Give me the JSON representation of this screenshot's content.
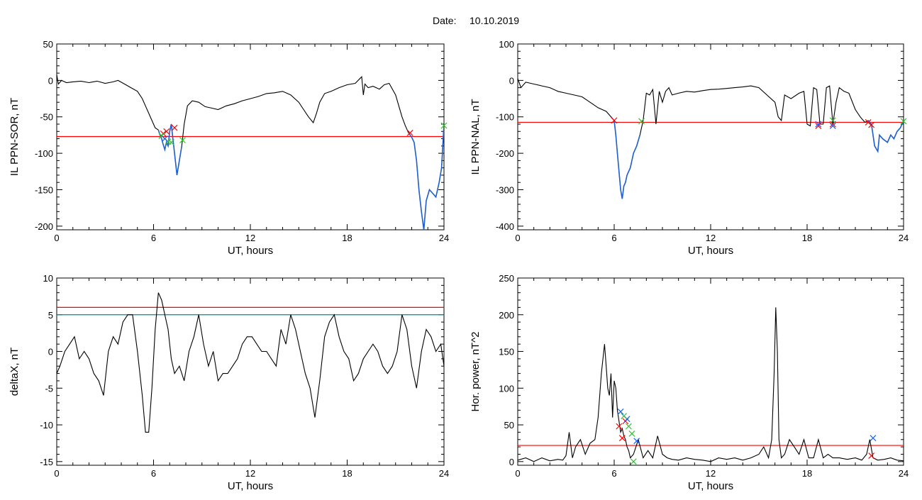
{
  "header": {
    "date_label": "Date:",
    "date_value": "10.10.2019"
  },
  "colors": {
    "background": "#ffffff",
    "axis": "#000000",
    "trace": "#000000",
    "highlight_trace": "#1f5fd0",
    "threshold_line": "#ff0000",
    "secondary_threshold_line": "#008b8b",
    "marker_red": "#ff0000",
    "marker_blue": "#1060ff",
    "marker_green": "#30c030"
  },
  "chart_data": [
    {
      "type": "line",
      "id": "il-sor",
      "title": "",
      "xlabel": "UT, hours",
      "ylabel": "IL PPN-SOR, nT",
      "xlim": [
        0,
        24
      ],
      "ylim": [
        -205,
        50
      ],
      "x_ticks": [
        "0",
        "6",
        "12",
        "18",
        "24"
      ],
      "y_ticks": [
        "50",
        "0",
        "-50",
        "-100",
        "-150",
        "-200"
      ],
      "grid": false,
      "series": [
        {
          "x": [
            0,
            0.1,
            0.3,
            0.6,
            1,
            1.5,
            2,
            2.5,
            3,
            3.5,
            3.8,
            4.2,
            4.6,
            5,
            5.3,
            5.5,
            5.7,
            5.9,
            6.1,
            6.3,
            6.4,
            6.5,
            6.6,
            6.7,
            6.8,
            6.9,
            7,
            7.1,
            7.2,
            7.3,
            7.45,
            7.6,
            7.75,
            7.9,
            8.1,
            8.4,
            8.8,
            9.2,
            9.6,
            10,
            10.5,
            11,
            11.5,
            12,
            12.5,
            13,
            13.5,
            14,
            14.5,
            15,
            15.3,
            15.6,
            15.9,
            16.1,
            16.3,
            16.6,
            17,
            17.5,
            18,
            18.5,
            18.9,
            19,
            19.1,
            19.3,
            19.6,
            20,
            20.3,
            20.6,
            21,
            21.2,
            21.4,
            21.6,
            21.8,
            22,
            22.15,
            22.3,
            22.45,
            22.6,
            22.75,
            22.9,
            23.1,
            23.3,
            23.5,
            23.7,
            23.85,
            24
          ],
          "y": [
            8,
            -5,
            0,
            -3,
            -2,
            -1,
            -3,
            -1,
            -4,
            -2,
            0,
            -5,
            -10,
            -15,
            -25,
            -35,
            -45,
            -55,
            -65,
            -68,
            -75,
            -80,
            -88,
            -95,
            -85,
            -90,
            -70,
            -60,
            -80,
            -100,
            -130,
            -110,
            -90,
            -60,
            -35,
            -28,
            -30,
            -36,
            -38,
            -40,
            -35,
            -32,
            -28,
            -25,
            -22,
            -18,
            -17,
            -15,
            -20,
            -30,
            -40,
            -50,
            -58,
            -45,
            -30,
            -18,
            -15,
            -10,
            -6,
            -4,
            5,
            -20,
            -5,
            -10,
            -8,
            -12,
            -6,
            -4,
            -20,
            -35,
            -50,
            -62,
            -72,
            -78,
            -85,
            -110,
            -150,
            -180,
            -205,
            -165,
            -150,
            -155,
            -160,
            -140,
            -120,
            -60
          ]
        }
      ],
      "highlight_segments": [
        [
          6.3,
          7.8
        ],
        [
          21.8,
          24
        ]
      ],
      "threshold_lines": [
        {
          "y": -77,
          "color": "#ff0000"
        }
      ],
      "markers": [
        {
          "x": 6.6,
          "y": -73,
          "color": "#ff0000"
        },
        {
          "x": 6.8,
          "y": -70,
          "color": "#ff0000"
        },
        {
          "x": 7.3,
          "y": -65,
          "color": "#ff0000"
        },
        {
          "x": 21.9,
          "y": -72,
          "color": "#ff0000"
        },
        {
          "x": 6.5,
          "y": -76,
          "color": "#30c030"
        },
        {
          "x": 6.9,
          "y": -84,
          "color": "#30c030"
        },
        {
          "x": 7.1,
          "y": -85,
          "color": "#30c030"
        },
        {
          "x": 7.8,
          "y": -82,
          "color": "#30c030"
        },
        {
          "x": 24,
          "y": -62,
          "color": "#30c030"
        },
        {
          "x": 6.7,
          "y": -80,
          "color": "#1060ff"
        }
      ]
    },
    {
      "type": "line",
      "id": "il-nal",
      "title": "",
      "xlabel": "UT, hours",
      "ylabel": "IL PPN-NAL, nT",
      "xlim": [
        0,
        24
      ],
      "ylim": [
        -410,
        100
      ],
      "x_ticks": [
        "0",
        "6",
        "12",
        "18",
        "24"
      ],
      "y_ticks": [
        "100",
        "0",
        "-100",
        "-200",
        "-300",
        "-400"
      ],
      "grid": false,
      "series": [
        {
          "x": [
            0,
            0.2,
            0.5,
            1,
            1.5,
            2,
            2.5,
            3,
            3.5,
            4,
            4.5,
            5,
            5.5,
            5.8,
            6,
            6.1,
            6.2,
            6.3,
            6.4,
            6.5,
            6.6,
            6.7,
            6.8,
            7,
            7.2,
            7.4,
            7.6,
            7.8,
            8,
            8.2,
            8.4,
            8.6,
            8.8,
            9,
            9.2,
            9.4,
            9.6,
            10,
            10.5,
            11,
            11.5,
            12,
            12.5,
            13,
            13.5,
            14,
            14.5,
            15,
            15.5,
            16,
            16.2,
            16.4,
            16.6,
            17,
            17.5,
            17.8,
            18,
            18.2,
            18.4,
            18.6,
            18.8,
            19,
            19.2,
            19.4,
            19.6,
            19.8,
            20,
            20.3,
            20.6,
            21,
            21.3,
            21.6,
            21.8,
            22,
            22.2,
            22.4,
            22.5,
            22.7,
            23,
            23.2,
            23.4,
            23.6,
            23.8,
            24
          ],
          "y": [
            5,
            -20,
            -5,
            -10,
            -15,
            -20,
            -30,
            -35,
            -40,
            -45,
            -60,
            -75,
            -85,
            -100,
            -110,
            -150,
            -200,
            -250,
            -300,
            -325,
            -290,
            -280,
            -260,
            -240,
            -200,
            -180,
            -150,
            -110,
            -35,
            -40,
            -25,
            -120,
            -30,
            -60,
            -30,
            -20,
            -40,
            -35,
            -30,
            -32,
            -28,
            -25,
            -24,
            -22,
            -20,
            -18,
            -15,
            -20,
            -40,
            -60,
            -100,
            -110,
            -40,
            -50,
            -35,
            -30,
            -120,
            -125,
            -20,
            -25,
            -120,
            -120,
            -20,
            -15,
            -120,
            -60,
            -20,
            -30,
            -35,
            -80,
            -100,
            -115,
            -110,
            -120,
            -180,
            -195,
            -150,
            -160,
            -170,
            -150,
            -160,
            -140,
            -130,
            -110
          ]
        }
      ],
      "highlight_segments": [
        [
          6.0,
          7.7
        ],
        [
          21.8,
          24
        ]
      ],
      "threshold_lines": [
        {
          "y": -115,
          "color": "#ff0000"
        }
      ],
      "markers": [
        {
          "x": 6.0,
          "y": -110,
          "color": "#ff0000"
        },
        {
          "x": 18.7,
          "y": -125,
          "color": "#ff0000"
        },
        {
          "x": 19.6,
          "y": -120,
          "color": "#ff0000"
        },
        {
          "x": 21.8,
          "y": -115,
          "color": "#ff0000"
        },
        {
          "x": 22.0,
          "y": -122,
          "color": "#ff0000"
        },
        {
          "x": 7.7,
          "y": -112,
          "color": "#30c030"
        },
        {
          "x": 19.6,
          "y": -110,
          "color": "#30c030"
        },
        {
          "x": 24,
          "y": -112,
          "color": "#30c030"
        },
        {
          "x": 18.7,
          "y": -120,
          "color": "#1060ff"
        },
        {
          "x": 19.6,
          "y": -125,
          "color": "#1060ff"
        }
      ]
    },
    {
      "type": "line",
      "id": "deltax",
      "title": "",
      "xlabel": "UT, hours",
      "ylabel": "deltaX, nT",
      "xlim": [
        0,
        24
      ],
      "ylim": [
        -15.5,
        10
      ],
      "x_ticks": [
        "0",
        "6",
        "12",
        "18",
        "24"
      ],
      "y_ticks": [
        "10",
        "5",
        "0",
        "-5",
        "-10",
        "-15"
      ],
      "grid": false,
      "series": [
        {
          "x": [
            0,
            0.2,
            0.5,
            0.8,
            1.1,
            1.4,
            1.7,
            2,
            2.3,
            2.6,
            2.9,
            3.2,
            3.5,
            3.8,
            4.1,
            4.4,
            4.7,
            5,
            5.3,
            5.5,
            5.7,
            5.9,
            6.1,
            6.3,
            6.5,
            6.7,
            6.9,
            7.1,
            7.3,
            7.6,
            7.9,
            8.2,
            8.5,
            8.8,
            9.1,
            9.4,
            9.7,
            10,
            10.3,
            10.6,
            10.9,
            11.2,
            11.5,
            11.8,
            12.1,
            12.4,
            12.7,
            13,
            13.3,
            13.6,
            13.9,
            14.2,
            14.5,
            14.8,
            15.1,
            15.4,
            15.7,
            16,
            16.3,
            16.6,
            16.9,
            17.2,
            17.5,
            17.8,
            18.1,
            18.4,
            18.7,
            19,
            19.3,
            19.6,
            19.9,
            20.2,
            20.5,
            20.8,
            21.1,
            21.4,
            21.7,
            22,
            22.3,
            22.6,
            22.9,
            23.2,
            23.5,
            23.8,
            24
          ],
          "y": [
            -3,
            -2,
            0,
            1,
            2,
            -1,
            0,
            -1,
            -3,
            -4,
            -6,
            0,
            2,
            1,
            4,
            5,
            5,
            0,
            -6,
            -11,
            -11,
            -5,
            3,
            8,
            7,
            5,
            3,
            -1,
            -3,
            -2,
            -4,
            0,
            2,
            5,
            1,
            -2,
            0,
            -4,
            -3,
            -3,
            -2,
            -1,
            1,
            2,
            2,
            1,
            0,
            0,
            -1,
            -2,
            3,
            1,
            5,
            3,
            0,
            -3,
            -5,
            -9,
            -4,
            2,
            4,
            5,
            2,
            0,
            -1,
            -4,
            -3,
            -1,
            0,
            1,
            0,
            -2,
            -3,
            -2,
            0,
            5,
            3,
            -2,
            -5,
            0,
            3,
            2,
            0,
            1,
            -2
          ]
        }
      ],
      "highlight_segments": [],
      "threshold_lines": [
        {
          "y": 6,
          "color": "#ff0000"
        },
        {
          "y": 5,
          "color": "#008b8b"
        }
      ],
      "markers": []
    },
    {
      "type": "line",
      "id": "hor-power",
      "title": "",
      "xlabel": "UT, hours",
      "ylabel": "Hor. power, nT^2",
      "xlim": [
        0,
        24
      ],
      "ylim": [
        -5,
        250
      ],
      "x_ticks": [
        "0",
        "6",
        "12",
        "18",
        "24"
      ],
      "y_ticks": [
        "250",
        "200",
        "150",
        "100",
        "50",
        "0"
      ],
      "grid": false,
      "series": [
        {
          "x": [
            0,
            0.5,
            1,
            1.5,
            2,
            2.5,
            2.8,
            3,
            3.2,
            3.4,
            3.6,
            3.9,
            4.2,
            4.5,
            4.8,
            5,
            5.2,
            5.4,
            5.5,
            5.6,
            5.7,
            5.8,
            5.9,
            6,
            6.1,
            6.2,
            6.3,
            6.4,
            6.5,
            6.6,
            6.7,
            6.8,
            6.9,
            7,
            7.2,
            7.5,
            7.8,
            8.1,
            8.4,
            8.7,
            9,
            9.3,
            9.6,
            10,
            10.5,
            11,
            11.5,
            12,
            12.5,
            13,
            13.5,
            14,
            14.5,
            15,
            15.3,
            15.6,
            15.8,
            15.95,
            16.05,
            16.15,
            16.25,
            16.4,
            16.6,
            16.9,
            17.2,
            17.5,
            17.8,
            18.1,
            18.4,
            18.7,
            19,
            19.3,
            19.6,
            20,
            20.5,
            21,
            21.4,
            21.7,
            21.9,
            22.1,
            22.4,
            22.8,
            23.2,
            23.6,
            24
          ],
          "y": [
            2,
            5,
            0,
            5,
            1,
            3,
            2,
            8,
            40,
            5,
            20,
            30,
            10,
            25,
            30,
            60,
            120,
            160,
            130,
            100,
            90,
            120,
            60,
            110,
            100,
            70,
            55,
            40,
            45,
            35,
            30,
            20,
            15,
            5,
            10,
            30,
            5,
            15,
            5,
            35,
            10,
            5,
            3,
            2,
            5,
            3,
            2,
            0,
            5,
            3,
            5,
            2,
            5,
            10,
            20,
            5,
            30,
            120,
            210,
            150,
            30,
            5,
            10,
            30,
            20,
            10,
            30,
            5,
            5,
            30,
            5,
            10,
            5,
            5,
            3,
            5,
            2,
            10,
            30,
            5,
            2,
            3,
            5,
            2,
            1
          ]
        }
      ],
      "highlight_segments": [],
      "threshold_lines": [
        {
          "y": 22,
          "color": "#ff0000"
        }
      ],
      "markers": [
        {
          "x": 6.3,
          "y": 48,
          "color": "#ff0000"
        },
        {
          "x": 6.5,
          "y": 32,
          "color": "#ff0000"
        },
        {
          "x": 6.7,
          "y": 55,
          "color": "#ff0000"
        },
        {
          "x": 22.0,
          "y": 8,
          "color": "#ff0000"
        },
        {
          "x": 6.4,
          "y": 68,
          "color": "#1060ff"
        },
        {
          "x": 6.8,
          "y": 58,
          "color": "#1060ff"
        },
        {
          "x": 7.4,
          "y": 28,
          "color": "#1060ff"
        },
        {
          "x": 22.1,
          "y": 32,
          "color": "#1060ff"
        },
        {
          "x": 6.6,
          "y": 62,
          "color": "#30c030"
        },
        {
          "x": 6.9,
          "y": 48,
          "color": "#30c030"
        },
        {
          "x": 7.1,
          "y": 38,
          "color": "#30c030"
        },
        {
          "x": 7.2,
          "y": 0,
          "color": "#30c030"
        }
      ]
    }
  ]
}
